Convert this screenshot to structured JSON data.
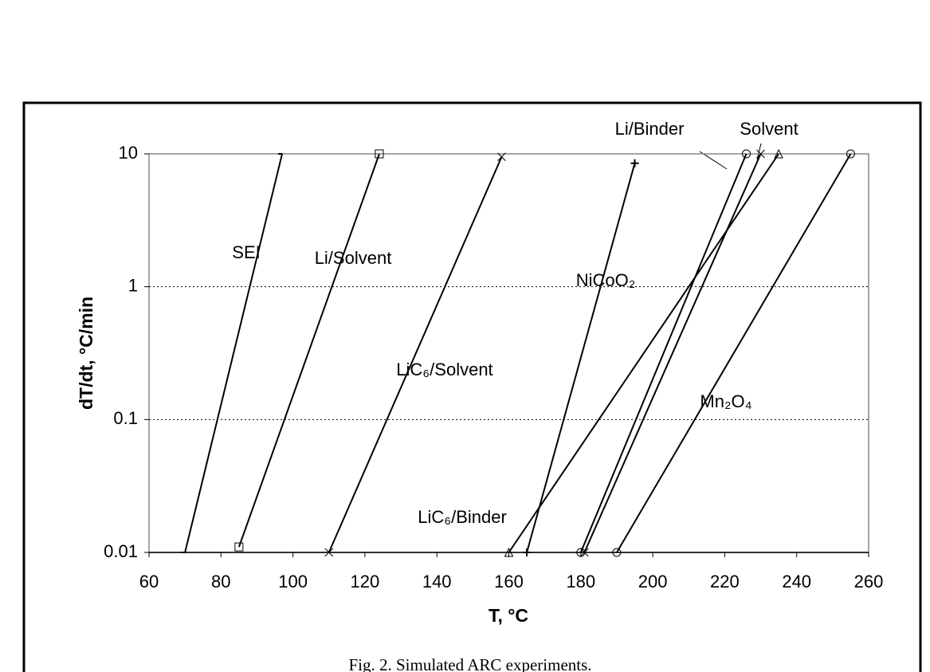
{
  "chart_data": {
    "type": "line",
    "x_label": "T, °C",
    "y_label": "dT/dt, °C/min",
    "caption": "Fig. 2. Simulated ARC experiments.",
    "xlim": [
      60,
      260
    ],
    "xticks": [
      60,
      80,
      100,
      120,
      140,
      160,
      180,
      200,
      220,
      240,
      260
    ],
    "ylim": [
      0.01,
      10
    ],
    "yticks": [
      0.01,
      0.1,
      1,
      10
    ],
    "log_y": true,
    "grid": true,
    "series": [
      {
        "name": "SEI",
        "color": "#000000",
        "marker": "tick",
        "x": [
          70,
          97
        ],
        "values": [
          0.01,
          10
        ]
      },
      {
        "name": "Li/Solvent",
        "color": "#000000",
        "marker": "square",
        "x": [
          85,
          124
        ],
        "values": [
          0.011,
          10
        ]
      },
      {
        "name": "LiC₆/Solvent",
        "color": "#000000",
        "marker": "x",
        "x": [
          110,
          158
        ],
        "values": [
          0.01,
          9.5
        ]
      },
      {
        "name": "NiCoO₂",
        "color": "#000000",
        "marker": "plus",
        "x": [
          165,
          195
        ],
        "values": [
          0.01,
          8.5
        ]
      },
      {
        "name": "LiC₆/Binder",
        "color": "#000000",
        "marker": "triangle",
        "x": [
          160,
          235
        ],
        "values": [
          0.01,
          10
        ]
      },
      {
        "name": "Li/Binder",
        "color": "#000000",
        "marker": "circle",
        "x": [
          180,
          226
        ],
        "values": [
          0.01,
          10
        ]
      },
      {
        "name": "Solvent",
        "color": "#000000",
        "marker": "x",
        "x": [
          181,
          230
        ],
        "values": [
          0.01,
          10
        ]
      },
      {
        "name": "Mn₂O₄",
        "color": "#000000",
        "marker": "circle",
        "x": [
          190,
          255
        ],
        "values": [
          0.01,
          10
        ]
      }
    ]
  }
}
